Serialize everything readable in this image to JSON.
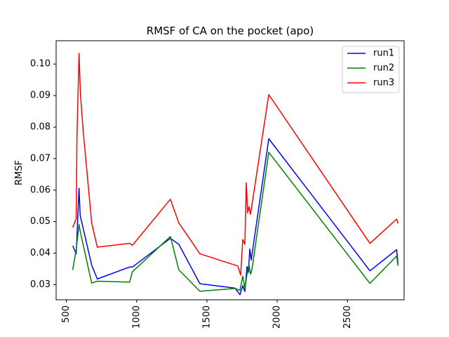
{
  "chart_data": {
    "type": "line",
    "title": "RMSF of CA on the pocket (apo)",
    "xlabel": "",
    "ylabel": "RMSF",
    "xlim": [
      427,
      2903
    ],
    "ylim": [
      0.0252,
      0.1074
    ],
    "xticks": [
      500,
      1000,
      1500,
      2000,
      2500
    ],
    "yticks": [
      0.03,
      0.04,
      0.05,
      0.06,
      0.07,
      0.08,
      0.09,
      0.1
    ],
    "xtick_labels": [
      "500",
      "1000",
      "1500",
      "2000",
      "2500"
    ],
    "ytick_labels": [
      "0.03",
      "0.04",
      "0.05",
      "0.06",
      "0.07",
      "0.08",
      "0.09",
      "0.10"
    ],
    "legend_position": "top-right",
    "series": [
      {
        "name": "run1",
        "color": "#0000ff",
        "points": [
          [
            545,
            0.0423
          ],
          [
            570,
            0.0398
          ],
          [
            590,
            0.0606
          ],
          [
            598,
            0.052
          ],
          [
            680,
            0.0362
          ],
          [
            720,
            0.0318
          ],
          [
            950,
            0.0356
          ],
          [
            970,
            0.0356
          ],
          [
            1240,
            0.0447
          ],
          [
            1300,
            0.0428
          ],
          [
            1450,
            0.0303
          ],
          [
            1700,
            0.0289
          ],
          [
            1735,
            0.0268
          ],
          [
            1755,
            0.0297
          ],
          [
            1770,
            0.0278
          ],
          [
            1785,
            0.0357
          ],
          [
            1795,
            0.0339
          ],
          [
            1805,
            0.0413
          ],
          [
            1815,
            0.0378
          ],
          [
            1940,
            0.0763
          ],
          [
            2660,
            0.0344
          ],
          [
            2850,
            0.0411
          ],
          [
            2860,
            0.0365
          ]
        ]
      },
      {
        "name": "run2",
        "color": "#008000",
        "points": [
          [
            545,
            0.0347
          ],
          [
            570,
            0.0412
          ],
          [
            590,
            0.0491
          ],
          [
            600,
            0.0465
          ],
          [
            680,
            0.0305
          ],
          [
            720,
            0.0311
          ],
          [
            950,
            0.0308
          ],
          [
            970,
            0.0341
          ],
          [
            1240,
            0.0453
          ],
          [
            1300,
            0.0347
          ],
          [
            1450,
            0.0279
          ],
          [
            1700,
            0.0288
          ],
          [
            1735,
            0.0282
          ],
          [
            1755,
            0.0327
          ],
          [
            1770,
            0.0289
          ],
          [
            1790,
            0.0347
          ],
          [
            1800,
            0.0364
          ],
          [
            1810,
            0.0333
          ],
          [
            1820,
            0.0347
          ],
          [
            1940,
            0.072
          ],
          [
            2660,
            0.0304
          ],
          [
            2850,
            0.0391
          ],
          [
            2860,
            0.036
          ]
        ]
      },
      {
        "name": "run3",
        "color": "#ff0000",
        "points": [
          [
            545,
            0.0481
          ],
          [
            570,
            0.051
          ],
          [
            575,
            0.0762
          ],
          [
            590,
            0.1034
          ],
          [
            600,
            0.0903
          ],
          [
            620,
            0.0786
          ],
          [
            680,
            0.0496
          ],
          [
            720,
            0.0419
          ],
          [
            950,
            0.0431
          ],
          [
            970,
            0.0425
          ],
          [
            1240,
            0.0571
          ],
          [
            1300,
            0.0496
          ],
          [
            1450,
            0.0398
          ],
          [
            1720,
            0.0359
          ],
          [
            1740,
            0.033
          ],
          [
            1755,
            0.0443
          ],
          [
            1770,
            0.0428
          ],
          [
            1780,
            0.0623
          ],
          [
            1790,
            0.0528
          ],
          [
            1800,
            0.0547
          ],
          [
            1810,
            0.0523
          ],
          [
            1940,
            0.0903
          ],
          [
            2660,
            0.0431
          ],
          [
            2850,
            0.0508
          ],
          [
            2860,
            0.0494
          ]
        ]
      }
    ]
  }
}
